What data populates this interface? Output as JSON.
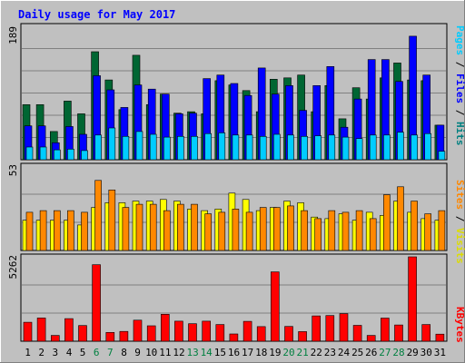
{
  "chart_data": [
    {
      "type": "bar",
      "title": "Daily usage for May 2017",
      "categories": [
        "1",
        "2",
        "3",
        "4",
        "5",
        "6",
        "7",
        "8",
        "9",
        "10",
        "11",
        "12",
        "13",
        "14",
        "15",
        "16",
        "17",
        "18",
        "19",
        "20",
        "21",
        "22",
        "23",
        "24",
        "25",
        "26",
        "27",
        "28",
        "29",
        "30",
        "31"
      ],
      "weekend_days": [
        "6",
        "7",
        "13",
        "14",
        "20",
        "21",
        "27",
        "28"
      ],
      "ymax_label": "189",
      "ylim": [
        0,
        189
      ],
      "legend": [
        "Pages",
        "Files",
        "Hits"
      ],
      "series": [
        {
          "name": "Hits",
          "values": [
            78,
            78,
            40,
            83,
            65,
            153,
            113,
            71,
            148,
            78,
            93,
            66,
            68,
            65,
            112,
            106,
            98,
            68,
            114,
            116,
            120,
            68,
            105,
            58,
            102,
            86,
            116,
            137,
            113,
            112,
            49
          ]
        },
        {
          "name": "Files",
          "values": [
            48,
            48,
            24,
            47,
            36,
            119,
            99,
            74,
            106,
            100,
            93,
            65,
            66,
            115,
            120,
            108,
            91,
            130,
            93,
            105,
            70,
            105,
            132,
            46,
            86,
            142,
            142,
            111,
            175,
            120,
            49
          ]
        },
        {
          "name": "Pages",
          "values": [
            18,
            18,
            14,
            15,
            13,
            35,
            45,
            33,
            40,
            36,
            32,
            33,
            33,
            37,
            38,
            35,
            35,
            33,
            36,
            35,
            33,
            34,
            35,
            32,
            30,
            35,
            35,
            39,
            35,
            37,
            12
          ]
        }
      ],
      "colors": {
        "Hits": "#006633",
        "Files": "#0000ff",
        "Pages": "#00ccff"
      }
    },
    {
      "type": "bar",
      "categories": [
        "1",
        "2",
        "3",
        "4",
        "5",
        "6",
        "7",
        "8",
        "9",
        "10",
        "11",
        "12",
        "13",
        "14",
        "15",
        "16",
        "17",
        "18",
        "19",
        "20",
        "21",
        "22",
        "23",
        "24",
        "25",
        "26",
        "27",
        "28",
        "29",
        "30",
        "31"
      ],
      "ymax_label": "53",
      "ylim": [
        0,
        53
      ],
      "legend": [
        "Sites",
        "Visits"
      ],
      "series": [
        {
          "name": "Visits",
          "values": [
            24,
            25,
            25,
            25,
            24,
            44,
            38,
            27,
            29,
            29,
            25,
            29,
            29,
            23,
            24,
            26,
            24,
            27,
            27,
            28,
            25,
            20,
            25,
            24,
            25,
            20,
            35,
            40,
            31,
            23,
            25
          ]
        },
        {
          "name": "Sites",
          "values": [
            19,
            19,
            19,
            19,
            16,
            27,
            30,
            30,
            31,
            31,
            32,
            31,
            26,
            25,
            26,
            36,
            32,
            25,
            27,
            31,
            30,
            21,
            20,
            23,
            19,
            24,
            22,
            31,
            24,
            20,
            19
          ]
        }
      ],
      "colors": {
        "Visits": "#ff8800",
        "Sites": "#ffff00"
      }
    },
    {
      "type": "bar",
      "categories": [
        "1",
        "2",
        "3",
        "4",
        "5",
        "6",
        "7",
        "8",
        "9",
        "10",
        "11",
        "12",
        "13",
        "14",
        "15",
        "16",
        "17",
        "18",
        "19",
        "20",
        "21",
        "22",
        "23",
        "24",
        "25",
        "26",
        "27",
        "28",
        "29",
        "30",
        "31"
      ],
      "ymax_label": "5262",
      "ylim": [
        0,
        5262
      ],
      "legend": [
        "KBytes"
      ],
      "series": [
        {
          "name": "KBytes",
          "values": [
            1180,
            1450,
            360,
            1410,
            980,
            4770,
            550,
            610,
            1310,
            960,
            1680,
            1250,
            1090,
            1250,
            1040,
            450,
            1240,
            910,
            4320,
            920,
            600,
            1580,
            1600,
            1720,
            990,
            360,
            1440,
            1010,
            5262,
            1040,
            440
          ]
        }
      ],
      "colors": {
        "KBytes": "#ff0000"
      }
    }
  ]
}
